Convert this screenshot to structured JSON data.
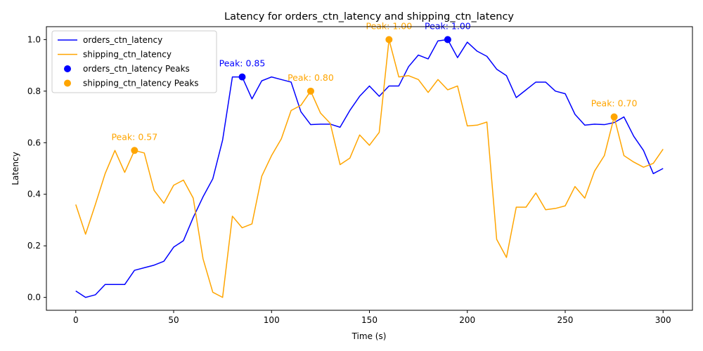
{
  "chart_data": {
    "type": "line",
    "title": "Latency for orders_ctn_latency and shipping_ctn_latency",
    "xlabel": "Time (s)",
    "ylabel": "Latency",
    "xlim": [
      -15,
      315
    ],
    "ylim": [
      -0.05,
      1.05
    ],
    "xticks": [
      0,
      50,
      100,
      150,
      200,
      250,
      300
    ],
    "xtick_labels": [
      "0",
      "50",
      "100",
      "150",
      "200",
      "250",
      "300"
    ],
    "yticks": [
      0.0,
      0.2,
      0.4,
      0.6,
      0.8,
      1.0
    ],
    "ytick_labels": [
      "0.0",
      "0.2",
      "0.4",
      "0.6",
      "0.8",
      "1.0"
    ],
    "grid": false,
    "legend_position": "top-left",
    "x": [
      0,
      5,
      10,
      15,
      20,
      25,
      30,
      35,
      40,
      45,
      50,
      55,
      60,
      65,
      70,
      75,
      80,
      85,
      90,
      95,
      100,
      105,
      110,
      115,
      120,
      125,
      130,
      135,
      140,
      145,
      150,
      155,
      160,
      165,
      170,
      175,
      180,
      185,
      190,
      195,
      200,
      205,
      210,
      215,
      220,
      225,
      230,
      235,
      240,
      245,
      250,
      255,
      260,
      265,
      270,
      275,
      280,
      285,
      290,
      295,
      300
    ],
    "series": [
      {
        "name": "orders_ctn_latency",
        "color": "#0000ff",
        "values": [
          0.025,
          0.0,
          0.01,
          0.05,
          0.05,
          0.05,
          0.105,
          0.115,
          0.125,
          0.14,
          0.195,
          0.22,
          0.31,
          0.39,
          0.46,
          0.61,
          0.855,
          0.855,
          0.77,
          0.84,
          0.855,
          0.845,
          0.835,
          0.72,
          0.67,
          0.672,
          0.672,
          0.66,
          0.725,
          0.78,
          0.82,
          0.78,
          0.82,
          0.82,
          0.895,
          0.94,
          0.925,
          0.995,
          1.0,
          0.93,
          0.99,
          0.955,
          0.935,
          0.885,
          0.86,
          0.775,
          0.805,
          0.835,
          0.835,
          0.8,
          0.79,
          0.71,
          0.668,
          0.672,
          0.67,
          0.678,
          0.7,
          0.625,
          0.57,
          0.48,
          0.5
        ]
      },
      {
        "name": "shipping_ctn_latency",
        "color": "#ffa500",
        "values": [
          0.36,
          0.245,
          0.36,
          0.48,
          0.57,
          0.485,
          0.57,
          0.56,
          0.415,
          0.365,
          0.435,
          0.455,
          0.385,
          0.15,
          0.02,
          0.0,
          0.315,
          0.27,
          0.285,
          0.47,
          0.55,
          0.615,
          0.725,
          0.745,
          0.8,
          0.715,
          0.675,
          0.515,
          0.54,
          0.63,
          0.59,
          0.64,
          1.0,
          0.855,
          0.86,
          0.845,
          0.795,
          0.845,
          0.805,
          0.82,
          0.665,
          0.668,
          0.68,
          0.225,
          0.155,
          0.35,
          0.35,
          0.405,
          0.34,
          0.345,
          0.355,
          0.43,
          0.385,
          0.49,
          0.55,
          0.7,
          0.55,
          0.525,
          0.505,
          0.52,
          0.575
        ]
      }
    ],
    "peaks": [
      {
        "name": "orders_ctn_latency Peaks",
        "color": "#0000ff",
        "points": [
          {
            "x": 85,
            "y": 0.855,
            "label": "Peak: 0.85"
          },
          {
            "x": 190,
            "y": 1.0,
            "label": "Peak: 1.00"
          }
        ]
      },
      {
        "name": "shipping_ctn_latency Peaks",
        "color": "#ffa500",
        "points": [
          {
            "x": 30,
            "y": 0.57,
            "label": "Peak: 0.57"
          },
          {
            "x": 120,
            "y": 0.8,
            "label": "Peak: 0.80"
          },
          {
            "x": 160,
            "y": 1.0,
            "label": "Peak: 1.00"
          },
          {
            "x": 275,
            "y": 0.7,
            "label": "Peak: 0.70"
          }
        ]
      }
    ]
  }
}
